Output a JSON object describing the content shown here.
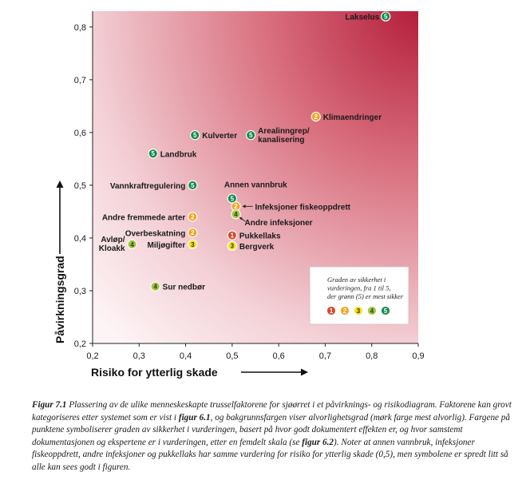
{
  "chart_data": {
    "type": "scatter",
    "xlabel": "Risiko for ytterlig skade",
    "ylabel": "Påvirkningsgrad",
    "xlim": [
      0.2,
      0.9
    ],
    "ylim": [
      0.2,
      0.83
    ],
    "xticks": [
      "0,2",
      "0,3",
      "0,4",
      "0,5",
      "0,6",
      "0,7",
      "0,8",
      "0,9"
    ],
    "yticks": [
      "0,2",
      "0,3",
      "0,4",
      "0,5",
      "0,6",
      "0,7",
      "0,8"
    ],
    "background": "gradient from light pink (low risk, low impact) to dark red (high risk, high impact)",
    "points": [
      {
        "label": "Lakselus",
        "x": 0.83,
        "y": 0.82,
        "certainty": "5"
      },
      {
        "label": "Klimaendringer",
        "x": 0.68,
        "y": 0.63,
        "certainty": "2"
      },
      {
        "label": "Kulverter",
        "x": 0.42,
        "y": 0.595,
        "certainty": "5"
      },
      {
        "label": "Arealinngrep/ kanalisering",
        "x": 0.54,
        "y": 0.595,
        "certainty": "5"
      },
      {
        "label": "Landbruk",
        "x": 0.33,
        "y": 0.56,
        "certainty": "5"
      },
      {
        "label": "Vannkraftregulering",
        "x": 0.415,
        "y": 0.5,
        "certainty": "5"
      },
      {
        "label": "Annen vannbruk",
        "x": 0.5,
        "y": 0.475,
        "certainty": "5"
      },
      {
        "label": "Infeksjoner fiskeoppdrett",
        "x": 0.508,
        "y": 0.46,
        "certainty": "2"
      },
      {
        "label": "Andre infeksjoner",
        "x": 0.508,
        "y": 0.445,
        "certainty": "4"
      },
      {
        "label": "Andre fremmede arter",
        "x": 0.415,
        "y": 0.44,
        "certainty": "2"
      },
      {
        "label": "Overbeskatning",
        "x": 0.415,
        "y": 0.41,
        "certainty": "2"
      },
      {
        "label": "Pukkellaks",
        "x": 0.5,
        "y": 0.405,
        "certainty": "1"
      },
      {
        "label": "Miljøgifter",
        "x": 0.415,
        "y": 0.388,
        "certainty": "3"
      },
      {
        "label": "Bergverk",
        "x": 0.5,
        "y": 0.385,
        "certainty": "3"
      },
      {
        "label": "Avløp/ Kloakk",
        "x": 0.285,
        "y": 0.388,
        "certainty": "4"
      },
      {
        "label": "Sur nedbør",
        "x": 0.335,
        "y": 0.308,
        "certainty": "4"
      }
    ],
    "legend": {
      "title": "Graden av sikkerhet i vurderingen, fra 1 til 5, der grønn (5) er mest sikker",
      "title_lines": [
        "Graden av sikkerhet i",
        "vurderingen, fra 1 til 5,",
        "der grønn (5) er mest sikker"
      ],
      "items": [
        "1",
        "2",
        "3",
        "4",
        "5"
      ],
      "placement": "lower-right"
    }
  },
  "colors": {
    "1": "#d24a2f",
    "2": "#f0a526",
    "3": "#f6e21b",
    "4": "#9fc73b",
    "5": "#138a4c",
    "bg_light": "#fbeef0",
    "bg_dark": "#b51f3c"
  },
  "caption": {
    "figure_label": "Figur 7.1",
    "parts": [
      {
        "t": " Plassering av de ulike menneskeskapte trusselfaktorene for sjøørret i et påvirknings- og risikodiagram. Faktorene kan grovt kategoriseres etter systemet som er vist i "
      },
      {
        "t": "figur 6.1",
        "b": true
      },
      {
        "t": ", og bakgrunnsfargen viser alvorlighetsgrad (mørk farge mest alvorlig). Fargene på punktene symboliserer graden av sikkerhet i vurderingen, basert på hvor godt dokumentert effekten er, og hvor samstemt dokumentasjonen og ekspertene er i vurderingen, etter en femdelt skala (se "
      },
      {
        "t": "figur 6.2",
        "b": true
      },
      {
        "t": "). Noter at annen vannbruk, infeksjoner fiskeoppdrett, andre infeksjoner og pukkellaks har samme vurdering for risiko for ytterlig skade (0,5), men symbolene er spredt litt så alle kan sees godt i figuren."
      }
    ]
  }
}
